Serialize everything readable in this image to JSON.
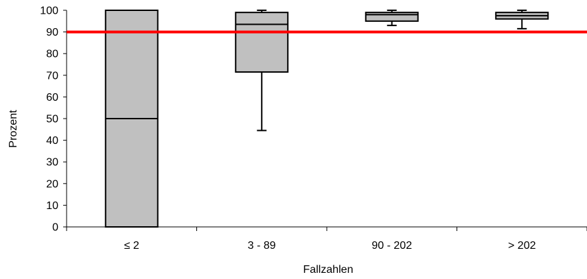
{
  "chart_data": {
    "type": "box",
    "xlabel": "Fallzahlen",
    "ylabel": "Prozent",
    "ylim": [
      0,
      100
    ],
    "yticks": [
      0,
      10,
      20,
      30,
      40,
      50,
      60,
      70,
      80,
      90,
      100
    ],
    "categories": [
      "≤ 2",
      "3 - 89",
      "90 - 202",
      "> 202"
    ],
    "boxes": [
      {
        "category": "≤ 2",
        "min": 0,
        "q1": 0,
        "median": 50,
        "q3": 100,
        "max": 100
      },
      {
        "category": "3 - 89",
        "min": 44.5,
        "q1": 71.5,
        "median": 93.5,
        "q3": 99,
        "max": 100
      },
      {
        "category": "90 - 202",
        "min": 93,
        "q1": 95,
        "median": 98,
        "q3": 99,
        "max": 100
      },
      {
        "category": "> 202",
        "min": 91.5,
        "q1": 96,
        "median": 97.5,
        "q3": 99,
        "max": 100
      }
    ],
    "reference_line": {
      "y": 90
    },
    "colors": {
      "box_fill": "#c0c0c0",
      "reference_line": "#ff0000",
      "stroke": "#000000"
    },
    "grid": false,
    "legend": "none"
  }
}
